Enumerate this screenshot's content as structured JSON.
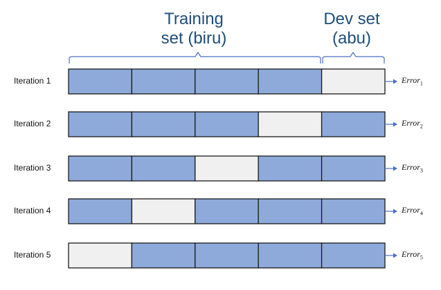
{
  "headers": {
    "training_line1": "Training",
    "training_line2": "set (biru)",
    "dev_line1": "Dev set",
    "dev_line2": "(abu)"
  },
  "colors": {
    "training_fold": "#8eaadb",
    "dev_fold": "#f0f0f0",
    "border": "#1a1a1a",
    "brace": "#4a6fc4",
    "arrow": "#4a6fc4",
    "header_text": "#1f4e79"
  },
  "iterations": [
    {
      "label": "Iteration 1",
      "dev_fold": 5,
      "error_base": "Error",
      "error_sub": "1"
    },
    {
      "label": "Iteration 2",
      "dev_fold": 4,
      "error_base": "Error",
      "error_sub": "2"
    },
    {
      "label": "Iteration 3",
      "dev_fold": 3,
      "error_base": "Error",
      "error_sub": "3"
    },
    {
      "label": "Iteration 4",
      "dev_fold": 2,
      "error_base": "Error",
      "error_sub": "4"
    },
    {
      "label": "Iteration 5",
      "dev_fold": 1,
      "error_base": "Error",
      "error_sub": "5"
    }
  ]
}
